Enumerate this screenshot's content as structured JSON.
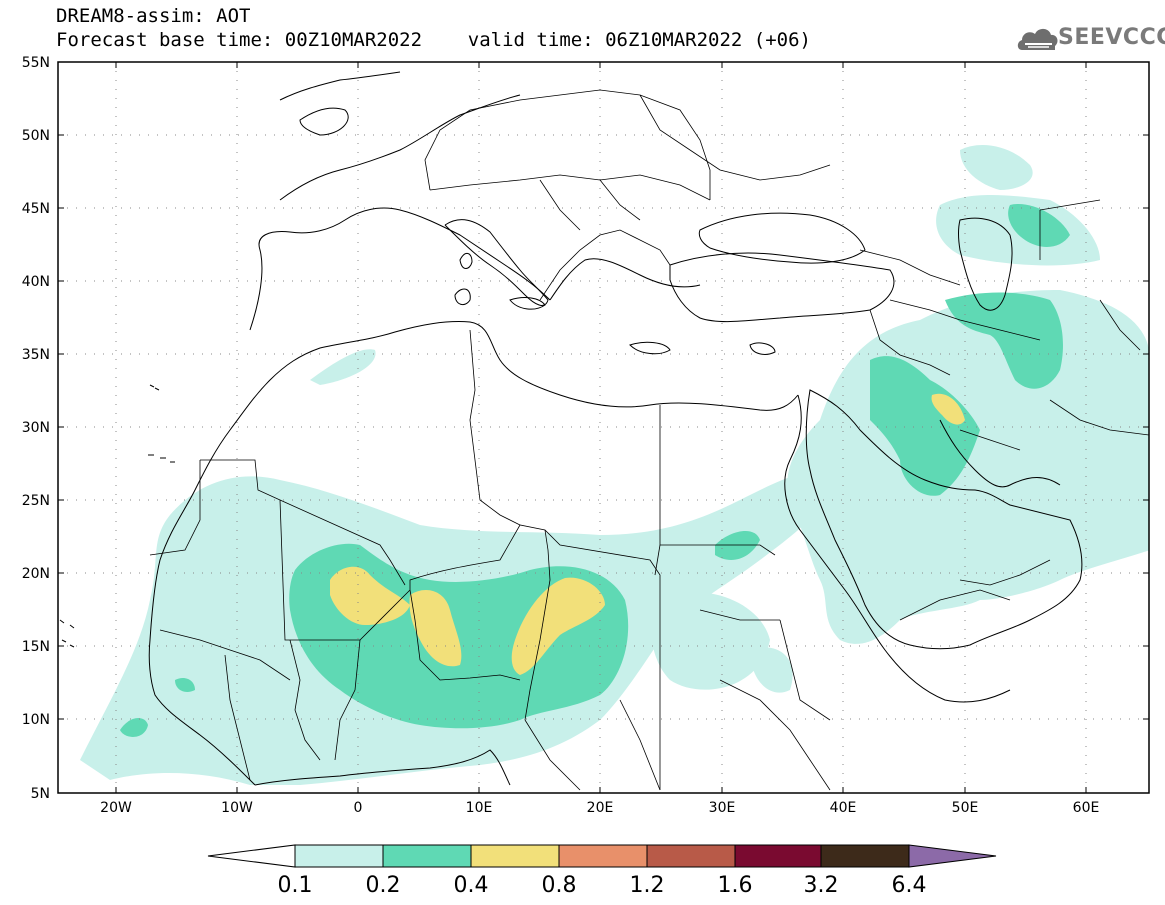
{
  "header": {
    "line1": "DREAM8-assim: AOT",
    "line2": "Forecast base time: 00Z10MAR2022    valid time: 06Z10MAR2022 (+06)",
    "logo_text": "SEEVCCC"
  },
  "axes": {
    "lat_labels": [
      "55N",
      "50N",
      "45N",
      "40N",
      "35N",
      "30N",
      "25N",
      "20N",
      "15N",
      "10N",
      "5N"
    ],
    "lon_labels": [
      "20W",
      "10W",
      "0",
      "10E",
      "20E",
      "30E",
      "40E",
      "50E",
      "60E"
    ]
  },
  "colorbar": {
    "thresholds": [
      "0.1",
      "0.2",
      "0.4",
      "0.8",
      "1.2",
      "1.6",
      "3.2",
      "6.4"
    ],
    "colors": [
      "#c8f0ea",
      "#5fd9b4",
      "#f2e07a",
      "#e8906a",
      "#b85a48",
      "#7a0a30",
      "#3d2a1a",
      "#8c6aa8"
    ]
  },
  "map": {
    "aot_colors": {
      "level_0_1": "#c8f0ea",
      "level_0_2": "#5fd9b4",
      "level_0_4": "#f2e07a"
    }
  }
}
